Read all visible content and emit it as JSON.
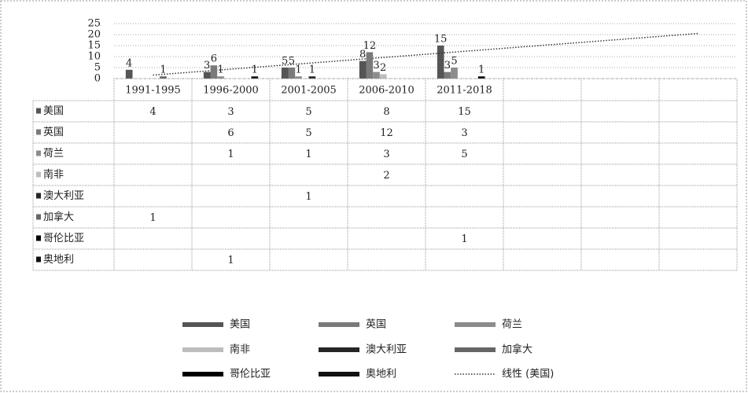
{
  "chart_data": {
    "type": "bar",
    "categories": [
      "1991-1995",
      "1996-2000",
      "2001-2005",
      "2006-2010",
      "2011-2018",
      null,
      null,
      null
    ],
    "series": [
      {
        "name": "美国",
        "color": "#555555",
        "values": [
          4,
          3,
          5,
          8,
          15,
          null,
          null,
          null
        ],
        "trendline": "线性 (美国)"
      },
      {
        "name": "英国",
        "color": "#7a7a7a",
        "values": [
          null,
          6,
          5,
          12,
          3,
          null,
          null,
          null
        ]
      },
      {
        "name": "荷兰",
        "color": "#8c8c8c",
        "values": [
          null,
          1,
          1,
          3,
          5,
          null,
          null,
          null
        ]
      },
      {
        "name": "南非",
        "color": "#bdbdbd",
        "values": [
          null,
          null,
          null,
          2,
          null,
          null,
          null,
          null
        ]
      },
      {
        "name": "澳大利亚",
        "color": "#262626",
        "values": [
          null,
          null,
          1,
          null,
          null,
          null,
          null,
          null
        ]
      },
      {
        "name": "加拿大",
        "color": "#666666",
        "values": [
          1,
          null,
          null,
          null,
          null,
          null,
          null,
          null
        ]
      },
      {
        "name": "哥伦比亚",
        "color": "#000000",
        "values": [
          null,
          null,
          null,
          null,
          1,
          null,
          null,
          null
        ]
      },
      {
        "name": "奥地利",
        "color": "#111111",
        "values": [
          null,
          1,
          null,
          null,
          null,
          null,
          null,
          null
        ]
      }
    ],
    "ylim": [
      0,
      25
    ],
    "yticks": [
      0,
      5,
      10,
      15,
      20,
      25
    ],
    "grid": true,
    "data_table": true,
    "legend": "bottom"
  }
}
